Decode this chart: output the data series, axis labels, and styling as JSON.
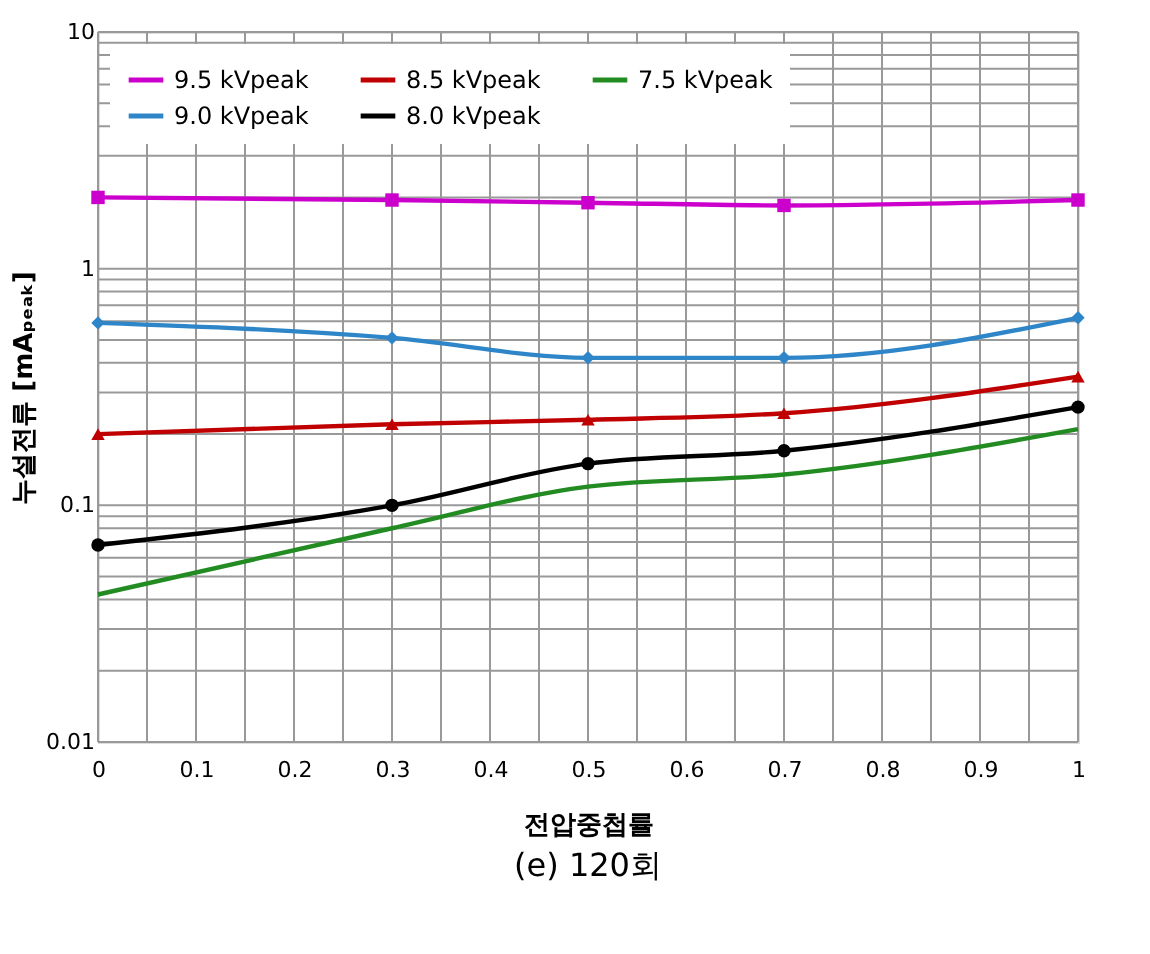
{
  "chart_data": {
    "type": "line",
    "xlabel": "전압중첩률",
    "ylabel": "누설전류 [mAₚₑₐₖ]",
    "annotations": [
      "(e) 120회"
    ],
    "x": [
      0,
      0.3,
      0.5,
      0.7,
      1
    ],
    "series": [
      {
        "name": "9.5 kVpeak",
        "color": "#cc00cc",
        "marker": "square",
        "values": [
          2.0,
          1.95,
          1.9,
          1.85,
          1.95
        ]
      },
      {
        "name": "9.0 kVpeak",
        "color": "#2e86c8",
        "marker": "diamond",
        "values": [
          0.59,
          0.51,
          0.42,
          0.42,
          0.62
        ]
      },
      {
        "name": "8.5 kVpeak",
        "color": "#c00000",
        "marker": "triangle",
        "values": [
          0.2,
          0.22,
          0.23,
          0.245,
          0.35
        ]
      },
      {
        "name": "8.0 kVpeak",
        "color": "#000000",
        "marker": "circle",
        "values": [
          0.068,
          0.1,
          0.15,
          0.17,
          0.26
        ]
      },
      {
        "name": "7.5 kVpeak",
        "color": "#228b22",
        "marker": "none",
        "values": [
          0.042,
          0.08,
          0.12,
          0.135,
          0.21
        ]
      }
    ],
    "xlim": [
      0,
      1
    ],
    "xticks": [
      0,
      {
        "value": 0.05,
        "label": null
      },
      0.1,
      {
        "value": 0.15,
        "label": null
      },
      0.2,
      {
        "value": 0.25,
        "label": null
      },
      0.3,
      {
        "value": 0.35,
        "label": null
      },
      0.4,
      {
        "value": 0.45,
        "label": null
      },
      0.5,
      {
        "value": 0.55,
        "label": null
      },
      0.6,
      {
        "value": 0.65,
        "label": null
      },
      0.7,
      {
        "value": 0.75,
        "label": null
      },
      0.8,
      {
        "value": 0.85,
        "label": null
      },
      0.9,
      {
        "value": 0.95,
        "label": null
      },
      1
    ],
    "log": "y",
    "ylim": [
      0.01,
      10
    ],
    "yticks": [
      0.01,
      {
        "value": 0.02,
        "label": null
      },
      {
        "value": 0.03,
        "label": null
      },
      {
        "value": 0.04,
        "label": null
      },
      {
        "value": 0.05,
        "label": null
      },
      {
        "value": 0.06,
        "label": null
      },
      {
        "value": 0.07,
        "label": null
      },
      {
        "value": 0.08,
        "label": null
      },
      {
        "value": 0.09,
        "label": null
      },
      0.1,
      {
        "value": 0.2,
        "label": null
      },
      {
        "value": 0.3,
        "label": null
      },
      {
        "value": 0.4,
        "label": null
      },
      {
        "value": 0.5,
        "label": null
      },
      {
        "value": 0.6,
        "label": null
      },
      {
        "value": 0.7,
        "label": null
      },
      {
        "value": 0.8,
        "label": null
      },
      {
        "value": 0.9,
        "label": null
      },
      1,
      {
        "value": 2,
        "label": null
      },
      {
        "value": 3,
        "label": null
      },
      {
        "value": 4,
        "label": null
      },
      {
        "value": 5,
        "label": null
      },
      {
        "value": 6,
        "label": null
      },
      {
        "value": 7,
        "label": null
      },
      {
        "value": 8,
        "label": null
      },
      {
        "value": 9,
        "label": null
      },
      10
    ],
    "grid": true,
    "legend": "top left",
    "line_style": "solid"
  }
}
